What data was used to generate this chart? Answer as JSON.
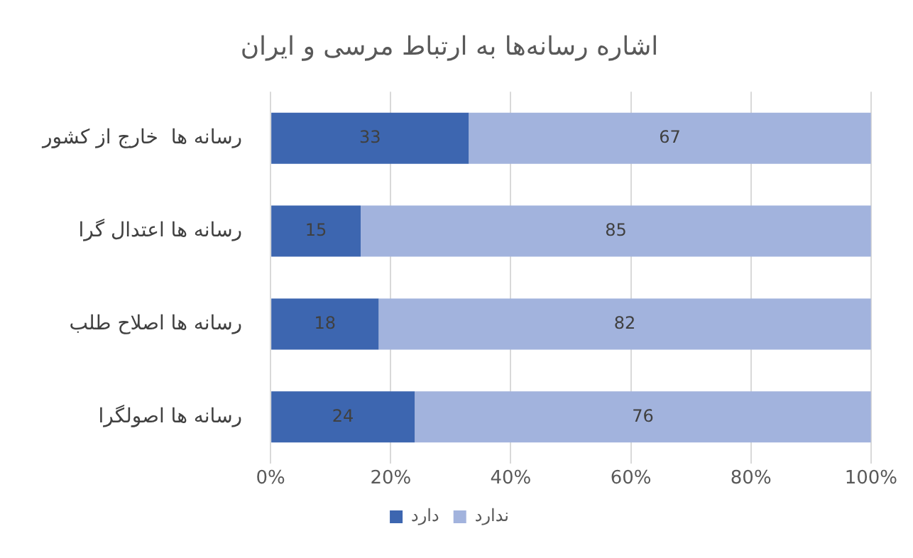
{
  "chart_data": {
    "type": "bar",
    "orientation": "horizontal",
    "stacked": true,
    "title": "اشاره رسانه‌ها به ارتباط مرسی و ایران",
    "categories": [
      "رسانه ها  خارج از کشور",
      "رسانه ها اعتدال گرا",
      "رسانه ها اصلاح طلب",
      "رسانه ها اصولگرا"
    ],
    "series": [
      {
        "name": "دارد",
        "color": "#3d66b0",
        "values": [
          33,
          15,
          18,
          24
        ]
      },
      {
        "name": "ندارد",
        "color": "#a2b3dd",
        "values": [
          67,
          85,
          82,
          76
        ]
      }
    ],
    "xlim": [
      0,
      100
    ],
    "xticks": [
      {
        "value": 0,
        "label": "0%"
      },
      {
        "value": 20,
        "label": "20%"
      },
      {
        "value": 40,
        "label": "40%"
      },
      {
        "value": 60,
        "label": "60%"
      },
      {
        "value": 80,
        "label": "80%"
      },
      {
        "value": 100,
        "label": "100%"
      }
    ],
    "grid": "x",
    "legend": "bottom",
    "data_labels": true
  }
}
